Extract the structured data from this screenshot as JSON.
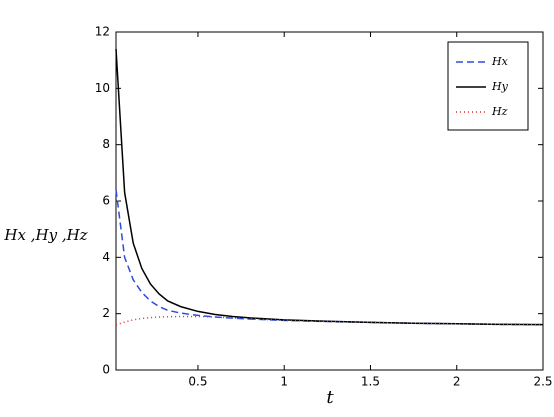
{
  "chart_data": {
    "type": "line",
    "x_label": "t",
    "y_label": "Hx ,Hy ,Hz",
    "x": [
      0.025,
      0.075,
      0.125,
      0.175,
      0.225,
      0.275,
      0.325,
      0.4,
      0.5,
      0.6,
      0.7,
      0.8,
      1.0,
      1.25,
      1.5,
      1.75,
      2.0,
      2.25,
      2.5
    ],
    "series": [
      {
        "name": "Hx",
        "color": "#2b4ce0",
        "dash": "7,4",
        "values": [
          6.4,
          4.0,
          3.2,
          2.75,
          2.45,
          2.25,
          2.12,
          2.02,
          1.94,
          1.88,
          1.84,
          1.81,
          1.76,
          1.72,
          1.69,
          1.66,
          1.64,
          1.62,
          1.61
        ]
      },
      {
        "name": "Hy",
        "color": "#000000",
        "dash": "none",
        "values": [
          11.4,
          6.3,
          4.5,
          3.6,
          3.05,
          2.7,
          2.45,
          2.25,
          2.08,
          1.97,
          1.9,
          1.85,
          1.78,
          1.73,
          1.69,
          1.66,
          1.64,
          1.62,
          1.61
        ]
      },
      {
        "name": "Hz",
        "color": "#e03030",
        "dash": "1,3",
        "values": [
          1.6,
          1.7,
          1.78,
          1.83,
          1.86,
          1.88,
          1.89,
          1.9,
          1.9,
          1.88,
          1.85,
          1.82,
          1.76,
          1.72,
          1.69,
          1.66,
          1.64,
          1.62,
          1.61
        ]
      }
    ],
    "xlim": [
      0.025,
      2.5
    ],
    "xticks": [
      0.5,
      1,
      1.5,
      2,
      2.5
    ],
    "ylim": [
      0,
      12
    ],
    "yticks": [
      0,
      2,
      4,
      6,
      8,
      10,
      12
    ],
    "grid": false,
    "legend": "upper right"
  }
}
